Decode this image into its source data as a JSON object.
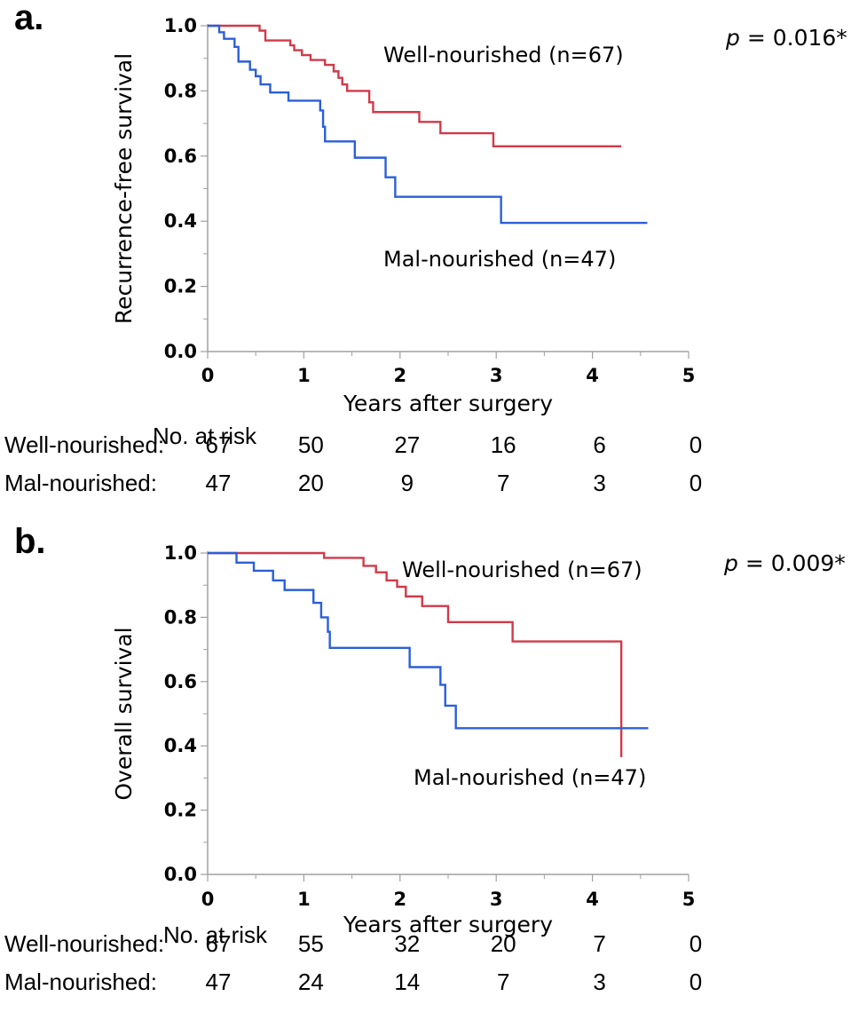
{
  "chart_data": [
    {
      "type": "line",
      "subtype": "kaplan-meier-step",
      "panel_label": "a.",
      "title": "",
      "xlabel": "Years after surgery",
      "ylabel": "Recurrence-free survival",
      "xlim": [
        0,
        5
      ],
      "ylim": [
        0,
        1
      ],
      "x_ticks": [
        "0",
        "1",
        "2",
        "3",
        "4",
        "5"
      ],
      "y_ticks": [
        "0.0",
        "0.2",
        "0.4",
        "0.6",
        "0.8",
        "1.0"
      ],
      "grid": false,
      "p_value": {
        "prefix": "p",
        "text": " = 0.016*"
      },
      "series": [
        {
          "name": "Well-nourished (n=67)",
          "color": "#d03a4a",
          "label_position": "upper",
          "steps": [
            [
              0,
              1.0
            ],
            [
              0.54,
              0.985
            ],
            [
              0.6,
              0.955
            ],
            [
              0.86,
              0.94
            ],
            [
              0.9,
              0.925
            ],
            [
              0.98,
              0.91
            ],
            [
              1.07,
              0.895
            ],
            [
              1.22,
              0.88
            ],
            [
              1.31,
              0.86
            ],
            [
              1.36,
              0.84
            ],
            [
              1.4,
              0.82
            ],
            [
              1.45,
              0.8
            ],
            [
              1.68,
              0.765
            ],
            [
              1.72,
              0.735
            ],
            [
              2.2,
              0.705
            ],
            [
              2.42,
              0.67
            ],
            [
              2.97,
              0.63
            ]
          ],
          "end_x": 4.3
        },
        {
          "name": "Mal-nourished (n=47)",
          "color": "#2b5fd9",
          "label_position": "lower",
          "steps": [
            [
              0,
              1.0
            ],
            [
              0.12,
              0.98
            ],
            [
              0.17,
              0.96
            ],
            [
              0.28,
              0.935
            ],
            [
              0.32,
              0.89
            ],
            [
              0.44,
              0.865
            ],
            [
              0.5,
              0.845
            ],
            [
              0.55,
              0.82
            ],
            [
              0.65,
              0.795
            ],
            [
              0.84,
              0.77
            ],
            [
              1.17,
              0.74
            ],
            [
              1.2,
              0.69
            ],
            [
              1.22,
              0.645
            ],
            [
              1.53,
              0.595
            ],
            [
              1.85,
              0.535
            ],
            [
              1.95,
              0.475
            ],
            [
              3.05,
              0.395
            ]
          ],
          "end_x": 4.57
        }
      ],
      "risk_table": {
        "title": "No. at risk",
        "times": [
          0,
          1,
          2,
          3,
          4,
          5
        ],
        "rows": [
          {
            "label": "Well-nourished:",
            "values": [
              "67",
              "50",
              "27",
              "16",
              "6",
              "0"
            ]
          },
          {
            "label": "Mal-nourished:",
            "values": [
              "47",
              "20",
              "9",
              "7",
              "3",
              "0"
            ]
          }
        ]
      }
    },
    {
      "type": "line",
      "subtype": "kaplan-meier-step",
      "panel_label": "b.",
      "title": "",
      "xlabel": "Years after surgery",
      "ylabel": "Overall survival",
      "xlim": [
        0,
        5
      ],
      "ylim": [
        0,
        1
      ],
      "x_ticks": [
        "0",
        "1",
        "2",
        "3",
        "4",
        "5"
      ],
      "y_ticks": [
        "0.0",
        "0.2",
        "0.4",
        "0.6",
        "0.8",
        "1.0"
      ],
      "grid": false,
      "p_value": {
        "prefix": "p",
        "text": " = 0.009*"
      },
      "series": [
        {
          "name": "Well-nourished (n=67)",
          "color": "#d03a4a",
          "label_position": "upper",
          "steps": [
            [
              0,
              1.0
            ],
            [
              1.21,
              0.985
            ],
            [
              1.62,
              0.96
            ],
            [
              1.75,
              0.94
            ],
            [
              1.86,
              0.915
            ],
            [
              1.97,
              0.895
            ],
            [
              2.06,
              0.865
            ],
            [
              2.23,
              0.835
            ],
            [
              2.5,
              0.785
            ],
            [
              3.17,
              0.725
            ],
            [
              4.3,
              0.365
            ]
          ],
          "end_x": 4.3
        },
        {
          "name": "Mal-nourished (n=47)",
          "color": "#2b5fd9",
          "label_position": "lower",
          "steps": [
            [
              0,
              1.0
            ],
            [
              0.3,
              0.97
            ],
            [
              0.48,
              0.945
            ],
            [
              0.68,
              0.915
            ],
            [
              0.8,
              0.885
            ],
            [
              1.1,
              0.845
            ],
            [
              1.18,
              0.8
            ],
            [
              1.25,
              0.755
            ],
            [
              1.27,
              0.705
            ],
            [
              2.1,
              0.645
            ],
            [
              2.42,
              0.59
            ],
            [
              2.47,
              0.525
            ],
            [
              2.58,
              0.455
            ]
          ],
          "end_x": 4.58
        }
      ],
      "risk_table": {
        "title": "No. at risk",
        "times": [
          0,
          1,
          2,
          3,
          4,
          5
        ],
        "rows": [
          {
            "label": "Well-nourished:",
            "values": [
              "67",
              "55",
              "32",
              "20",
              "7",
              "0"
            ]
          },
          {
            "label": "Mal-nourished:",
            "values": [
              "47",
              "24",
              "14",
              "7",
              "3",
              "0"
            ]
          }
        ]
      }
    }
  ]
}
